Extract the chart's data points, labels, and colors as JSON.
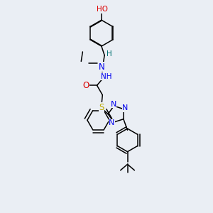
{
  "background_color": "#eaeef4",
  "atom_colors": {
    "C": "#000000",
    "N": "#0000ee",
    "O": "#dd0000",
    "S": "#bbaa00",
    "H": "#007070"
  },
  "figsize": [
    3.0,
    3.0
  ],
  "dpi": 100
}
